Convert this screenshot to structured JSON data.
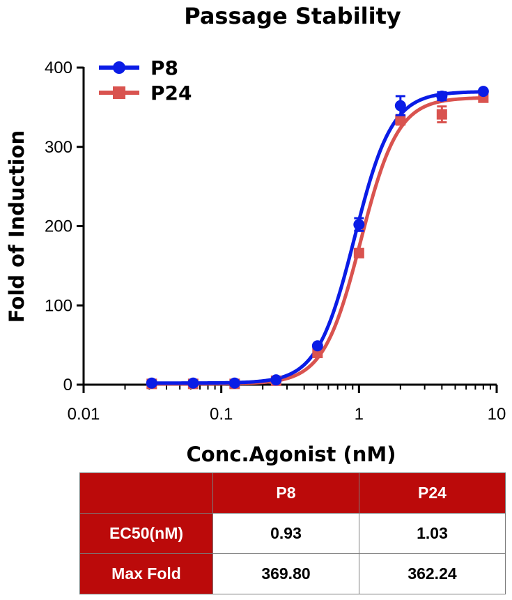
{
  "chart_data": {
    "type": "scatter",
    "title": "Passage Stability",
    "xlabel": "Conc.Agonist (nM)",
    "ylabel": "Fold of Induction",
    "xscale": "log",
    "xlim": [
      0.01,
      10
    ],
    "ylim": [
      0,
      400
    ],
    "x_ticks": [
      "0.01",
      "0.1",
      "1",
      "10"
    ],
    "y_ticks": [
      "0",
      "100",
      "200",
      "300",
      "400"
    ],
    "legend_position": "top-left",
    "grid": false,
    "x": [
      0.03125,
      0.0625,
      0.125,
      0.25,
      0.5,
      1,
      2,
      4,
      8
    ],
    "series": [
      {
        "name": "P8",
        "color": "#0a1ce6",
        "marker": "circle",
        "values": [
          2,
          2,
          2,
          6,
          49,
          202,
          352,
          364,
          370
        ],
        "errors": [
          0,
          0,
          0,
          0,
          0,
          8,
          12,
          5,
          0
        ],
        "fit": {
          "bottom": 2,
          "top": 369.8,
          "ec50": 0.93,
          "hill": 3.2
        }
      },
      {
        "name": "P24",
        "color": "#d9534f",
        "marker": "square",
        "values": [
          1,
          1,
          1,
          5,
          40,
          166,
          334,
          341,
          362
        ],
        "errors": [
          0,
          0,
          0,
          0,
          0,
          5,
          6,
          10,
          0
        ],
        "fit": {
          "bottom": 1,
          "top": 362.24,
          "ec50": 1.03,
          "hill": 3.2
        }
      }
    ]
  },
  "table": {
    "headers": [
      "",
      "P8",
      "P24"
    ],
    "rows": [
      {
        "label": "EC50(nM)",
        "p8": "0.93",
        "p24": "1.03"
      },
      {
        "label": "Max Fold",
        "p8": "369.80",
        "p24": "362.24"
      }
    ]
  }
}
